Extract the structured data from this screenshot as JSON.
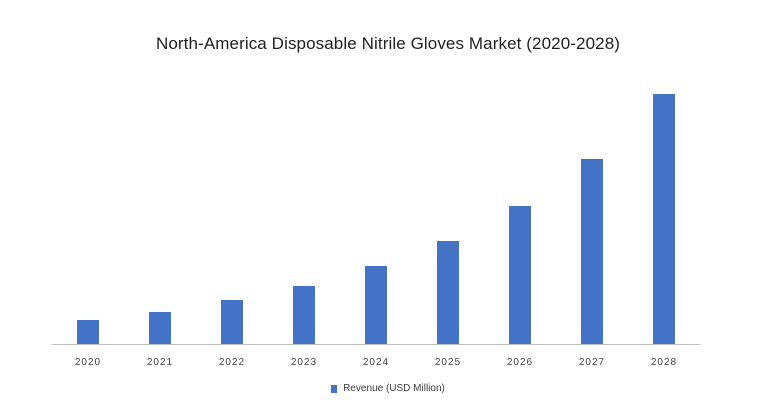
{
  "chart_data": {
    "type": "bar",
    "title": "North-America Disposable Nitrile Gloves Market (2020-2028)",
    "xlabel": "",
    "ylabel": "",
    "categories": [
      "2020",
      "2021",
      "2022",
      "2023",
      "2024",
      "2025",
      "2026",
      "2027",
      "2028"
    ],
    "series": [
      {
        "name": "Revenue (USD Million)",
        "values": [
          24,
          32,
          44,
          58,
          78,
          103,
          138,
          185,
          250
        ]
      }
    ],
    "ylim": [
      0,
      250
    ],
    "grid": false,
    "legend": "bottom",
    "bar_color": "#4472C4",
    "axis_color": "#BFBFBF"
  }
}
